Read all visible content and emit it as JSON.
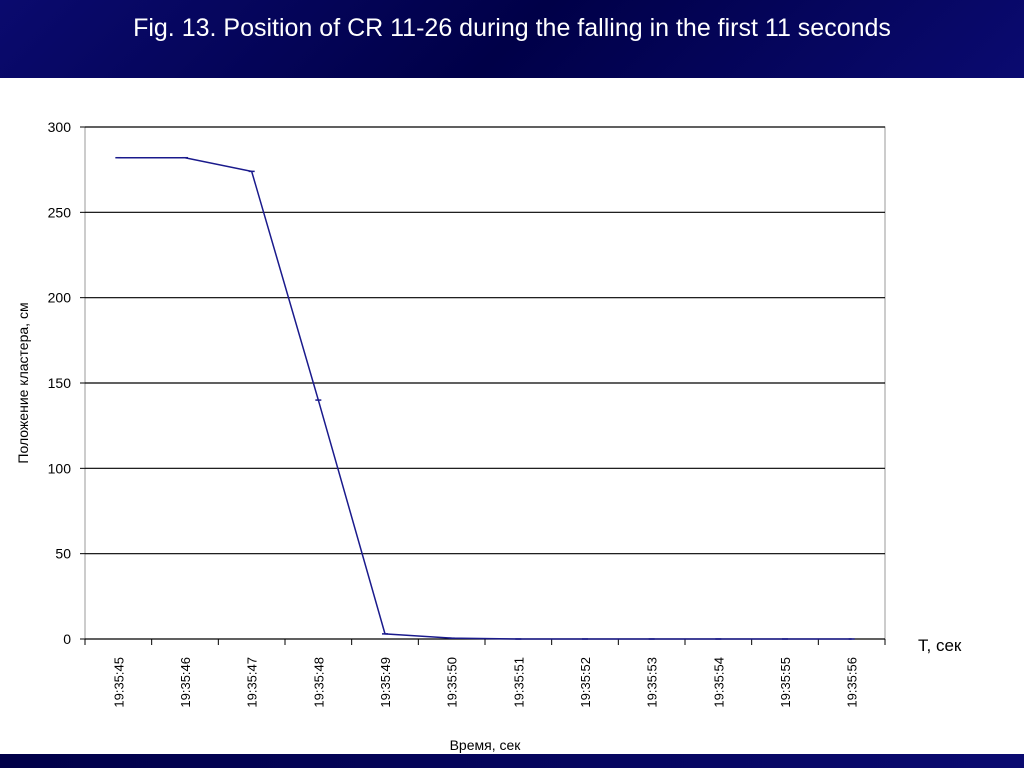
{
  "chart_data": {
    "type": "line",
    "title": "Fig. 13. Position of CR 11-26 during the falling in the first 11 seconds",
    "y_label": "Положение кластера, см",
    "x_label": "Время, сек",
    "x_annotation": "T, сек",
    "categories": [
      "19:35:45",
      "19:35:46",
      "19:35:47",
      "19:35:48",
      "19:35:49",
      "19:35:50",
      "19:35:51",
      "19:35:52",
      "19:35:53",
      "19:35:54",
      "19:35:55",
      "19:35:56"
    ],
    "values": [
      282,
      282,
      274,
      140,
      3,
      0.5,
      0,
      0,
      0,
      0,
      0,
      0
    ],
    "color": "#1a1a8c",
    "ylim": [
      0,
      300
    ],
    "yticks": [
      0,
      50,
      100,
      150,
      200,
      250,
      300
    ],
    "grid": true
  }
}
